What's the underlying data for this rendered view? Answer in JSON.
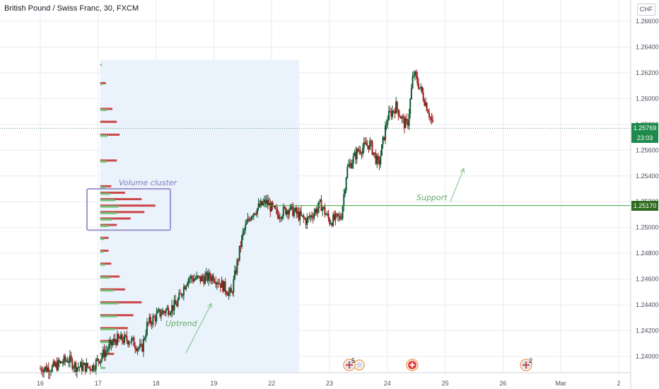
{
  "header": {
    "symbol_title": "British Pound / Swiss Franc, 30, FXCM",
    "currency_button": "CHF"
  },
  "colors": {
    "up": "#4caf50",
    "down": "#b71c1c",
    "candle_up_body": "#0e5a32",
    "candle_down_body": "#a31c1c",
    "grid": "#e8ebf0",
    "axis_text": "#4a4f5c",
    "volume_up": "#6fbf73",
    "volume_down": "#c62828",
    "region_fill": "#eaf3fb",
    "cluster_box": "#9c96cf",
    "cluster_text": "#7f77c0",
    "support_line": "#4caf50",
    "support_text": "#66a96a",
    "annotation_arrow": "#7fbf82",
    "current_price_bg": "#1e8a4c",
    "support_price_bg": "#2e6b1f"
  },
  "price_axis": {
    "labels": [
      "1.26600",
      "1.26400",
      "1.26200",
      "1.26000",
      "1.25800",
      "1.25600",
      "1.25400",
      "1.25200",
      "1.25000",
      "1.24800",
      "1.24600",
      "1.24400",
      "1.24200",
      "1.24000"
    ],
    "current_price": "1.25769",
    "countdown": "23:03",
    "support_price": "1.25170"
  },
  "time_axis": {
    "labels": [
      "16",
      "17",
      "18",
      "19",
      "22",
      "23",
      "24",
      "25",
      "26",
      "Mar",
      "2"
    ]
  },
  "annotations": {
    "volume_cluster": "Volume cluster",
    "support": "Support",
    "uptrend": "Uptrend"
  },
  "event_icons": [
    {
      "name": "uk-flag-events-icon",
      "count": "5"
    },
    {
      "name": "swiss-flag-event-icon",
      "count": ""
    },
    {
      "name": "uk-flag-event-icon",
      "count": "2"
    }
  ],
  "chart_data": {
    "type": "candlestick",
    "ylim": [
      1.2385,
      1.2672
    ],
    "x_labels": [
      "16",
      "17",
      "18",
      "19",
      "22",
      "23",
      "24",
      "25",
      "26",
      "Mar",
      "2"
    ],
    "close_path": [
      [
        0,
        1.23905
      ],
      [
        0.2,
        1.2391
      ],
      [
        0.48,
        1.2398
      ],
      [
        0.62,
        1.2392
      ],
      [
        0.9,
        1.2392
      ],
      [
        1.3,
        1.2413
      ],
      [
        1.55,
        1.2413
      ],
      [
        1.75,
        1.2405
      ],
      [
        1.85,
        1.2425
      ],
      [
        2.05,
        1.2433
      ],
      [
        2.35,
        1.244
      ],
      [
        2.55,
        1.2461
      ],
      [
        2.75,
        1.246
      ],
      [
        3.0,
        1.2462
      ],
      [
        3.3,
        1.2448
      ],
      [
        3.5,
        1.2495
      ],
      [
        3.65,
        1.2511
      ],
      [
        3.9,
        1.252
      ],
      [
        4.1,
        1.251
      ],
      [
        4.3,
        1.2515
      ],
      [
        4.6,
        1.2505
      ],
      [
        4.85,
        1.2518
      ],
      [
        5.0,
        1.2505
      ],
      [
        5.2,
        1.2508
      ],
      [
        5.3,
        1.2545
      ],
      [
        5.5,
        1.256
      ],
      [
        5.7,
        1.2565
      ],
      [
        5.85,
        1.2548
      ],
      [
        6.0,
        1.2585
      ],
      [
        6.15,
        1.2594
      ],
      [
        6.3,
        1.258
      ],
      [
        6.35,
        1.258
      ],
      [
        6.45,
        1.262
      ],
      [
        6.55,
        1.261
      ],
      [
        6.7,
        1.2592
      ],
      [
        6.8,
        1.2577
      ]
    ],
    "current_price": 1.25769,
    "support_level": 1.2517,
    "volume_profile_up": [
      [
        1.2392,
        0.15
      ],
      [
        1.2402,
        0.2
      ],
      [
        1.2412,
        0.3
      ],
      [
        1.2422,
        0.45
      ],
      [
        1.2432,
        0.5
      ],
      [
        1.2442,
        0.55
      ],
      [
        1.2452,
        0.4
      ],
      [
        1.2462,
        0.3
      ],
      [
        1.2472,
        0.15
      ],
      [
        1.2482,
        0.1
      ],
      [
        1.2492,
        0.12
      ],
      [
        1.2502,
        0.25
      ],
      [
        1.2507,
        0.35
      ],
      [
        1.2512,
        0.5
      ],
      [
        1.2517,
        0.55
      ],
      [
        1.2522,
        0.45
      ],
      [
        1.2527,
        0.3
      ],
      [
        1.2532,
        0.15
      ],
      [
        1.2552,
        0.2
      ],
      [
        1.2572,
        0.22
      ],
      [
        1.2592,
        0.2
      ],
      [
        1.2612,
        0.08
      ],
      [
        1.2627,
        0.05
      ]
    ],
    "volume_profile_down": [
      [
        1.2402,
        0.25
      ],
      [
        1.2412,
        0.35
      ],
      [
        1.2422,
        0.5
      ],
      [
        1.2432,
        0.6
      ],
      [
        1.2442,
        0.75
      ],
      [
        1.2452,
        0.45
      ],
      [
        1.2462,
        0.35
      ],
      [
        1.2472,
        0.2
      ],
      [
        1.2482,
        0.15
      ],
      [
        1.2492,
        0.15
      ],
      [
        1.2502,
        0.3
      ],
      [
        1.2507,
        0.55
      ],
      [
        1.2512,
        0.8
      ],
      [
        1.2517,
        1.0
      ],
      [
        1.2522,
        0.75
      ],
      [
        1.2527,
        0.45
      ],
      [
        1.2532,
        0.2
      ],
      [
        1.2552,
        0.3
      ],
      [
        1.2572,
        0.35
      ],
      [
        1.2582,
        0.3
      ],
      [
        1.2592,
        0.22
      ],
      [
        1.2612,
        0.1
      ]
    ]
  }
}
